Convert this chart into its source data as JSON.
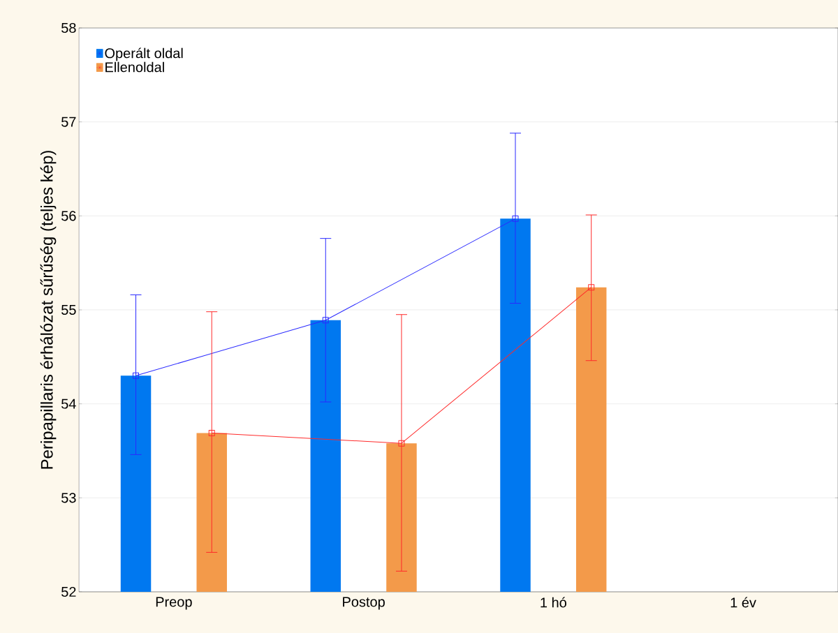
{
  "chart_data": {
    "type": "bar",
    "ylabel": "Peripapillaris érhálózat sűrűség (teljes kép)",
    "categories": [
      "Preop",
      "Postop",
      "1 hó",
      "1 év"
    ],
    "series": [
      {
        "name": "Operált oldal",
        "color": "#0078f0",
        "values": [
          54.3,
          54.89,
          55.97,
          null
        ]
      },
      {
        "name": "Ellenoldal",
        "color": "#f39a4a",
        "values": [
          53.69,
          53.58,
          55.24,
          null
        ]
      },
      {
        "type": "line",
        "color": "#2a2aff",
        "values": [
          54.3,
          54.89,
          55.97,
          null
        ],
        "errors": [
          [
            53.46,
            55.16
          ],
          [
            54.02,
            55.76
          ],
          [
            55.07,
            56.88
          ],
          null
        ]
      },
      {
        "type": "line",
        "color": "#ff2a2a",
        "values": [
          53.69,
          53.58,
          55.24,
          null
        ],
        "errors": [
          [
            52.42,
            54.98
          ],
          [
            52.22,
            54.95
          ],
          [
            54.46,
            56.01
          ],
          null
        ]
      }
    ],
    "ylim": [
      52,
      58
    ],
    "yticks": [
      52,
      53,
      54,
      55,
      56,
      57,
      58
    ],
    "grid": "y",
    "legend": "top left",
    "marker": "square",
    "line_style": "solid"
  }
}
